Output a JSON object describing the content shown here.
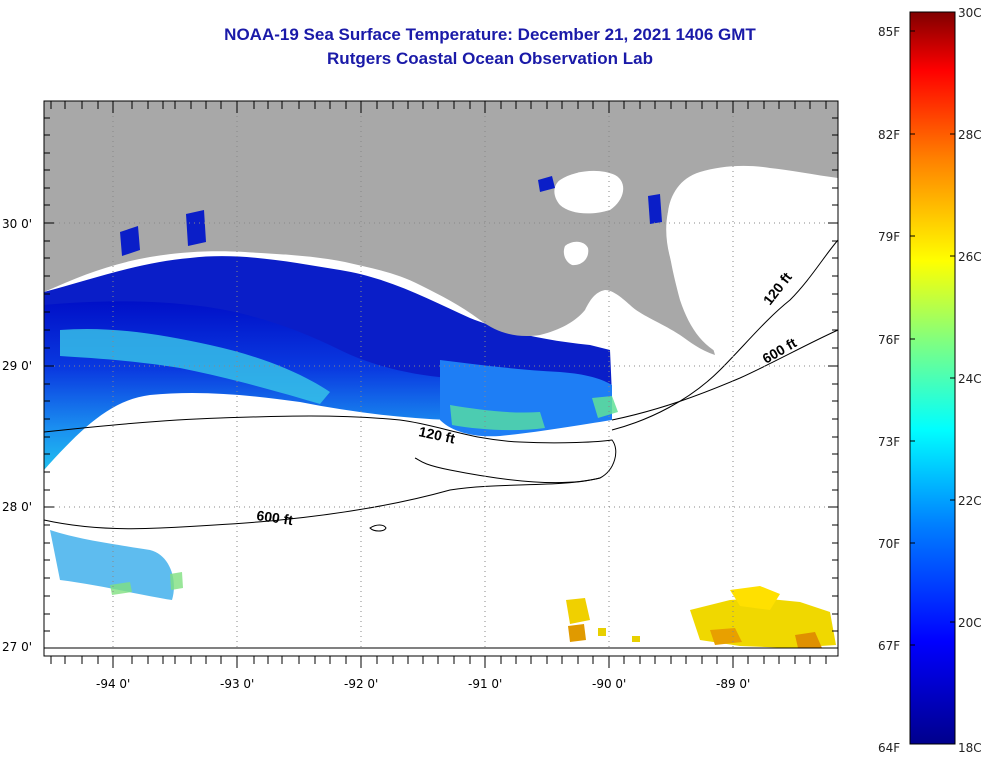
{
  "header": {
    "title_line1": "NOAA-19 Sea Surface Temperature:  December 21, 2021 1406 GMT",
    "title_line2": "Rutgers Coastal Ocean Observation Lab"
  },
  "map": {
    "lon_ticks": [
      "-94 0'",
      "-93 0'",
      "-92 0'",
      "-91 0'",
      "-90 0'",
      "-89 0'"
    ],
    "lat_ticks": [
      "30 0'",
      "29 0'",
      "28 0'",
      "27 0'"
    ],
    "depth_labels": [
      "120 ft",
      "600 ft",
      "120 ft",
      "600 ft"
    ],
    "colors": {
      "land": "#a8a8a8",
      "ocean_no_data": "#ffffff"
    }
  },
  "colorbar": {
    "fahrenheit_labels": [
      "85F",
      "82F",
      "79F",
      "76F",
      "73F",
      "70F",
      "67F",
      "64F"
    ],
    "celsius_labels": [
      "30C",
      "28C",
      "26C",
      "24C",
      "22C",
      "20C",
      "18C"
    ],
    "gradient": [
      "#00008c",
      "#0000ff",
      "#0080ff",
      "#00ffff",
      "#80ff80",
      "#ffff00",
      "#ff8000",
      "#ff0000",
      "#800000"
    ]
  }
}
